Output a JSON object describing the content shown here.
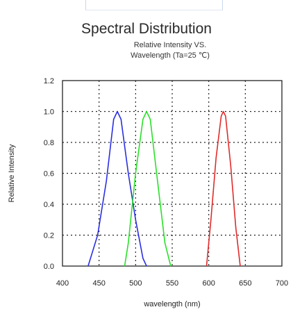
{
  "chart_data": {
    "type": "line",
    "title": "Spectral Distribution",
    "subtitle": "Relative Intensity VS.\nWavelength (Ta=25 ℃)",
    "xlabel": "wavelength (nm)",
    "ylabel": "Relative Intensity",
    "xlim": [
      400,
      700
    ],
    "ylim": [
      0,
      1.2
    ],
    "xticks": [
      "400",
      "450",
      "500",
      "550",
      "600",
      "650",
      "700"
    ],
    "yticks": [
      "0.0",
      "0.2",
      "0.4",
      "0.6",
      "0.8",
      "1.0",
      "1.2"
    ],
    "grid": "dotted",
    "series": [
      {
        "color": "#2a2ee0",
        "x": [
          435,
          448,
          460,
          470,
          475,
          480,
          490,
          500,
          510,
          515
        ],
        "y": [
          0.0,
          0.2,
          0.55,
          0.95,
          1.0,
          0.95,
          0.6,
          0.3,
          0.05,
          0.0
        ]
      },
      {
        "color": "#2adf2a",
        "x": [
          485,
          490,
          500,
          510,
          515,
          520,
          530,
          540,
          548
        ],
        "y": [
          0.0,
          0.15,
          0.6,
          0.95,
          1.0,
          0.95,
          0.55,
          0.15,
          0.0
        ]
      },
      {
        "color": "#e02a2a",
        "x": [
          597,
          603,
          610,
          617,
          620,
          623,
          630,
          637,
          643
        ],
        "y": [
          0.0,
          0.3,
          0.7,
          0.97,
          1.0,
          0.97,
          0.65,
          0.25,
          0.0
        ]
      }
    ]
  }
}
